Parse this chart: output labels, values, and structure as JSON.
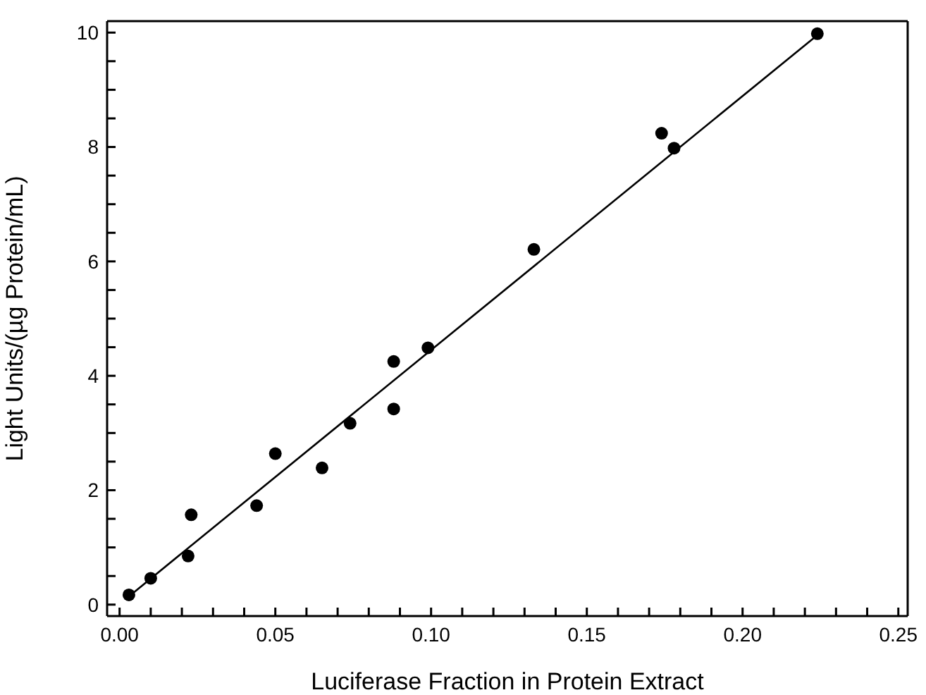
{
  "chart_data": {
    "type": "scatter",
    "xlabel": "Luciferase Fraction in Protein Extract",
    "ylabel": "Light Units/(µg Protein/mL)",
    "xlim": [
      -0.004,
      0.253
    ],
    "ylim": [
      -0.2,
      10.2
    ],
    "xticks": [
      {
        "value": 0,
        "label": "0.00"
      },
      {
        "value": 0.01,
        "label": null
      },
      {
        "value": 0.02,
        "label": null
      },
      {
        "value": 0.03,
        "label": null
      },
      {
        "value": 0.04,
        "label": null
      },
      {
        "value": 0.05,
        "label": "0.05"
      },
      {
        "value": 0.06,
        "label": null
      },
      {
        "value": 0.07,
        "label": null
      },
      {
        "value": 0.08,
        "label": null
      },
      {
        "value": 0.09,
        "label": null
      },
      {
        "value": 0.1,
        "label": "0.10"
      },
      {
        "value": 0.11,
        "label": null
      },
      {
        "value": 0.12,
        "label": null
      },
      {
        "value": 0.13,
        "label": null
      },
      {
        "value": 0.14,
        "label": null
      },
      {
        "value": 0.15,
        "label": "0.15"
      },
      {
        "value": 0.16,
        "label": null
      },
      {
        "value": 0.17,
        "label": null
      },
      {
        "value": 0.18,
        "label": null
      },
      {
        "value": 0.19,
        "label": null
      },
      {
        "value": 0.2,
        "label": "0.20"
      },
      {
        "value": 0.21,
        "label": null
      },
      {
        "value": 0.22,
        "label": null
      },
      {
        "value": 0.23,
        "label": null
      },
      {
        "value": 0.24,
        "label": null
      },
      {
        "value": 0.25,
        "label": "0.25"
      }
    ],
    "yticks": [
      0,
      {
        "value": 0.5,
        "label": null
      },
      {
        "value": 1,
        "label": null
      },
      {
        "value": 1.5,
        "label": null
      },
      2,
      {
        "value": 2.5,
        "label": null
      },
      {
        "value": 3,
        "label": null
      },
      {
        "value": 3.5,
        "label": null
      },
      4,
      {
        "value": 4.5,
        "label": null
      },
      {
        "value": 5,
        "label": null
      },
      {
        "value": 5.5,
        "label": null
      },
      6,
      {
        "value": 6.5,
        "label": null
      },
      {
        "value": 7,
        "label": null
      },
      {
        "value": 7.5,
        "label": null
      },
      8,
      {
        "value": 8.5,
        "label": null
      },
      {
        "value": 9,
        "label": null
      },
      {
        "value": 9.5,
        "label": null
      },
      10
    ],
    "marker": "circle",
    "grid": false,
    "series": [
      {
        "color": "#000000",
        "x": [
          0.003,
          0.01,
          0.022,
          0.023,
          0.044,
          0.05,
          0.065,
          0.074,
          0.088,
          0.088,
          0.099,
          0.133,
          0.174,
          0.178,
          0.224
        ],
        "values": [
          0.17,
          0.46,
          0.85,
          1.57,
          1.73,
          2.64,
          2.39,
          3.17,
          4.25,
          3.42,
          4.49,
          6.21,
          8.24,
          7.98,
          9.98
        ]
      },
      {
        "type": "line",
        "color": "#000000",
        "marker": "none",
        "x": [
          0.002,
          0.225
        ],
        "values": [
          0.1,
          10.0
        ]
      }
    ]
  }
}
